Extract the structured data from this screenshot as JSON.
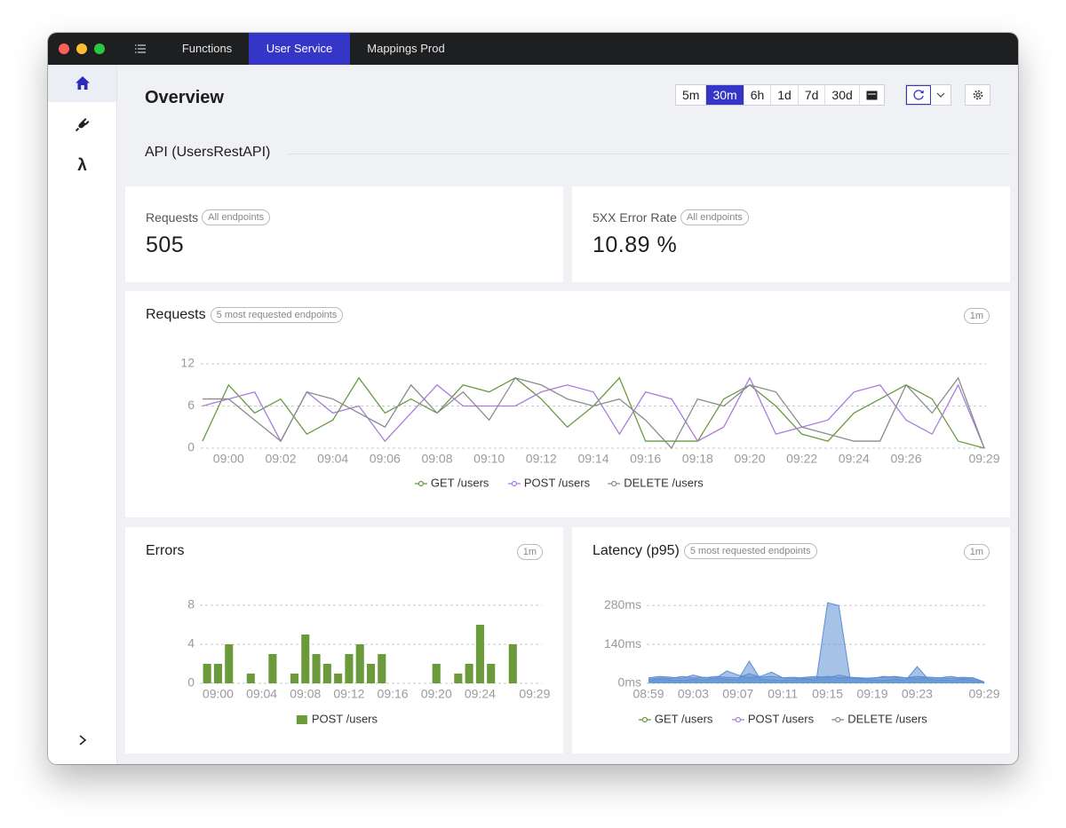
{
  "tabs": [
    "Functions",
    "User Service",
    "Mappings Prod"
  ],
  "selected_tab": "User Service",
  "page_title": "Overview",
  "time_ranges": [
    "5m",
    "30m",
    "6h",
    "1d",
    "7d",
    "30d"
  ],
  "selected_time_range": "30m",
  "section_title": "API (UsersRestAPI)",
  "stats": [
    {
      "label": "Requests",
      "badge": "All endpoints",
      "value": 505
    },
    {
      "label": "5XX Error Rate",
      "badge": "All endpoints",
      "value": "10.89 %"
    }
  ],
  "charts": [
    {
      "type": "line",
      "title": "Requests",
      "badge": "5 most requested endpoints",
      "interval": "1m",
      "categories": [
        null,
        "09:00",
        null,
        "09:02",
        null,
        "09:04",
        null,
        "09:06",
        null,
        "09:08",
        null,
        "09:10",
        null,
        "09:12",
        null,
        "09:14",
        null,
        "09:16",
        null,
        "09:18",
        null,
        "09:20",
        null,
        "09:22",
        null,
        "09:24",
        null,
        "09:26",
        null,
        null,
        "09:29"
      ],
      "series": [
        {
          "name": "GET /users",
          "color": "#6a9a45",
          "values": [
            1,
            9,
            5,
            7,
            2,
            4,
            10,
            5,
            7,
            5,
            9,
            8,
            10,
            7,
            3,
            6,
            10,
            1,
            1,
            1,
            7,
            9,
            6,
            2,
            1,
            5,
            7,
            9,
            7,
            1,
            0
          ]
        },
        {
          "name": "POST /users",
          "color": "#a97cdb",
          "values": [
            6,
            7,
            8,
            1,
            8,
            5,
            6,
            1,
            5,
            9,
            6,
            6,
            6,
            8,
            9,
            8,
            2,
            8,
            7,
            1,
            3,
            10,
            2,
            3,
            4,
            8,
            9,
            4,
            2,
            9,
            0
          ]
        },
        {
          "name": "DELETE /users",
          "color": "#8c8c8c",
          "values": [
            7,
            7,
            4,
            1,
            8,
            7,
            5,
            3,
            9,
            5,
            8,
            4,
            10,
            9,
            7,
            6,
            7,
            4,
            0,
            7,
            6,
            9,
            8,
            3,
            2,
            1,
            1,
            9,
            5,
            10,
            0
          ]
        }
      ],
      "ylim": [
        0,
        12
      ],
      "yticks": [
        0,
        6,
        12
      ],
      "grid": true
    },
    {
      "type": "bar",
      "title": "Errors",
      "interval": "1m",
      "categories": [
        null,
        "09:00",
        null,
        null,
        null,
        "09:04",
        null,
        null,
        null,
        "09:08",
        null,
        null,
        null,
        "09:12",
        null,
        null,
        null,
        "09:16",
        null,
        null,
        null,
        "09:20",
        null,
        null,
        null,
        "09:24",
        null,
        null,
        null,
        null,
        "09:29"
      ],
      "series": [
        {
          "name": "POST /users",
          "color": "#6a9a3a",
          "values": [
            2,
            2,
            4,
            0,
            1,
            0,
            3,
            0,
            1,
            5,
            3,
            2,
            1,
            3,
            4,
            2,
            3,
            0,
            0,
            0,
            0,
            2,
            0,
            1,
            2,
            6,
            2,
            0,
            4,
            0,
            0
          ]
        }
      ],
      "ylim": [
        0,
        8
      ],
      "yticks": [
        0,
        4,
        8
      ],
      "grid": true
    },
    {
      "type": "area",
      "title": "Latency (p95)",
      "badge": "5 most requested endpoints",
      "interval": "1m",
      "categories": [
        "08:59",
        null,
        null,
        null,
        "09:03",
        null,
        null,
        null,
        "09:07",
        null,
        null,
        null,
        "09:11",
        null,
        null,
        null,
        "09:15",
        null,
        null,
        null,
        "09:19",
        null,
        null,
        null,
        "09:23",
        null,
        null,
        null,
        null,
        null,
        "09:29"
      ],
      "fill_color": "#5d8fd4",
      "series": [
        {
          "name": "GET /users",
          "color": "#6a9a45",
          "values": [
            20,
            25,
            22,
            18,
            30,
            20,
            25,
            22,
            20,
            35,
            22,
            25,
            20,
            18,
            22,
            25,
            20,
            30,
            22,
            20,
            18,
            25,
            22,
            20,
            25,
            22,
            20,
            18,
            22,
            20,
            5
          ]
        },
        {
          "name": "POST /users",
          "color": "#a97cdb",
          "values": [
            15,
            20,
            18,
            25,
            20,
            22,
            18,
            45,
            30,
            20,
            25,
            40,
            20,
            22,
            18,
            20,
            25,
            20,
            22,
            18,
            20,
            22,
            25,
            20,
            18,
            22,
            20,
            25,
            18,
            20,
            5
          ]
        },
        {
          "name": "DELETE /users",
          "color": "#8c8c8c",
          "values": [
            10,
            15,
            12,
            10,
            15,
            12,
            20,
            15,
            12,
            80,
            15,
            12,
            10,
            12,
            15,
            12,
            290,
            280,
            20,
            15,
            12,
            10,
            15,
            12,
            60,
            15,
            12,
            10,
            15,
            12,
            5
          ]
        }
      ],
      "ylim": [
        0,
        300
      ],
      "yticks": [
        {
          "value": 0,
          "label": "0ms"
        },
        {
          "value": 140,
          "label": "140ms"
        },
        {
          "value": 280,
          "label": "280ms"
        }
      ],
      "grid": true
    }
  ]
}
